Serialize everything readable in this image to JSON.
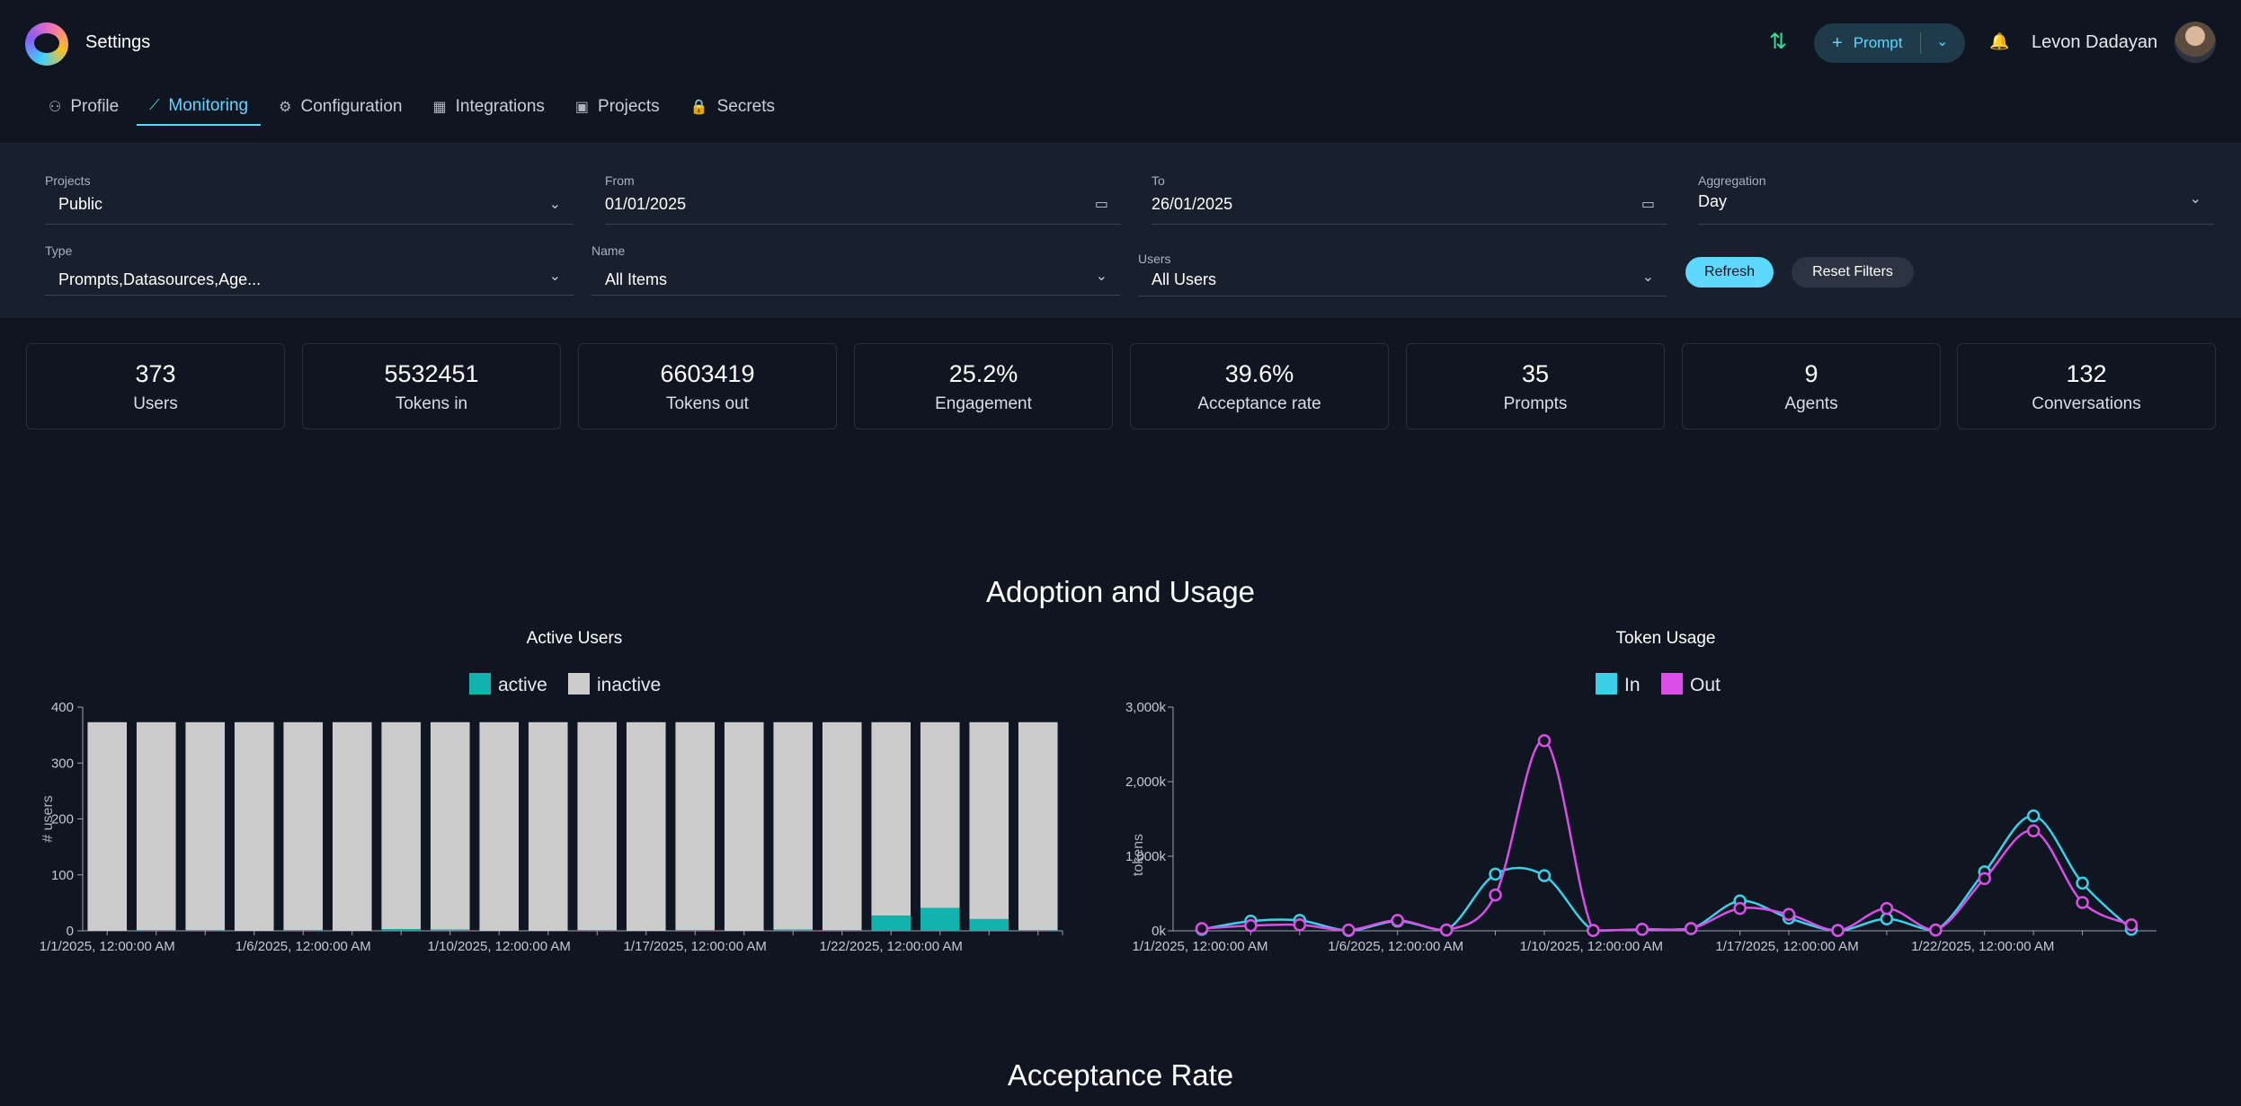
{
  "header": {
    "title": "Settings",
    "prompt_button": "Prompt",
    "username": "Levon Dadayan",
    "tabs": [
      {
        "label": "Profile",
        "icon": "user-icon"
      },
      {
        "label": "Monitoring",
        "icon": "chart-icon"
      },
      {
        "label": "Configuration",
        "icon": "gear-icon"
      },
      {
        "label": "Integrations",
        "icon": "grid-icon"
      },
      {
        "label": "Projects",
        "icon": "briefcase-icon"
      },
      {
        "label": "Secrets",
        "icon": "lock-icon"
      }
    ],
    "active_tab": "Monitoring"
  },
  "filters": {
    "projects": {
      "label": "Projects",
      "value": "Public"
    },
    "from": {
      "label": "From",
      "value": "01/01/2025"
    },
    "to": {
      "label": "To",
      "value": "26/01/2025"
    },
    "aggregation": {
      "label": "Aggregation",
      "value": "Day"
    },
    "type": {
      "label": "Type",
      "value": "Prompts,Datasources,Age..."
    },
    "name": {
      "label": "Name",
      "value": "All Items"
    },
    "users": {
      "label": "Users",
      "value": "All Users"
    },
    "refresh": "Refresh",
    "reset": "Reset Filters"
  },
  "stats": [
    {
      "value": "373",
      "label": "Users"
    },
    {
      "value": "5532451",
      "label": "Tokens in"
    },
    {
      "value": "6603419",
      "label": "Tokens out"
    },
    {
      "value": "25.2%",
      "label": "Engagement"
    },
    {
      "value": "39.6%",
      "label": "Acceptance rate"
    },
    {
      "value": "35",
      "label": "Prompts"
    },
    {
      "value": "9",
      "label": "Agents"
    },
    {
      "value": "132",
      "label": "Conversations"
    }
  ],
  "sections": {
    "adoption": "Adoption and Usage",
    "acceptance": "Acceptance Rate"
  },
  "colors": {
    "accent": "#5fd8ff",
    "active": "#11b3ad",
    "inactive": "#cccccc",
    "in": "#3ccfe8",
    "out": "#d94fe6"
  },
  "chart_data": [
    {
      "type": "bar",
      "title": "Active Users",
      "ylabel": "# users",
      "xlabel": "",
      "ylim": [
        0,
        400
      ],
      "yticks": [
        "0",
        "100",
        "200",
        "300",
        "400"
      ],
      "legend": [
        "active",
        "inactive"
      ],
      "legend_position": "top-center",
      "x_tick_labels": [
        "1/1/2025, 12:00:00 AM",
        "1/6/2025, 12:00:00 AM",
        "1/10/2025, 12:00:00 AM",
        "1/17/2025, 12:00:00 AM",
        "1/22/2025, 12:00:00 AM"
      ],
      "x_tick_index": [
        0,
        4,
        8,
        12,
        16
      ],
      "series": [
        {
          "name": "active",
          "values": [
            0,
            1,
            1,
            0,
            1,
            0,
            3,
            2,
            0,
            0,
            1,
            0,
            1,
            0,
            2,
            1,
            27,
            41,
            21,
            1
          ]
        },
        {
          "name": "inactive",
          "values": [
            373,
            372,
            372,
            373,
            372,
            373,
            370,
            371,
            373,
            373,
            372,
            373,
            372,
            373,
            371,
            372,
            346,
            332,
            352,
            372
          ]
        }
      ]
    },
    {
      "type": "line",
      "title": "Token Usage",
      "ylabel": "tokens",
      "xlabel": "",
      "ylim": [
        0,
        3000
      ],
      "yticks": [
        "0k",
        "1,000k",
        "2,000k",
        "3,000k"
      ],
      "legend": [
        "In",
        "Out"
      ],
      "legend_position": "top-center",
      "x_tick_labels": [
        "1/1/2025, 12:00:00 AM",
        "1/6/2025, 12:00:00 AM",
        "1/10/2025, 12:00:00 AM",
        "1/17/2025, 12:00:00 AM",
        "1/22/2025, 12:00:00 AM"
      ],
      "x_tick_index": [
        0,
        4,
        8,
        12,
        16
      ],
      "series": [
        {
          "name": "In",
          "values": [
            20,
            130,
            140,
            5,
            130,
            10,
            760,
            740,
            5,
            20,
            30,
            400,
            170,
            5,
            160,
            10,
            790,
            1540,
            640,
            20
          ]
        },
        {
          "name": "Out",
          "values": [
            30,
            70,
            80,
            10,
            140,
            10,
            480,
            2550,
            5,
            20,
            30,
            300,
            220,
            5,
            300,
            10,
            700,
            1340,
            380,
            80
          ]
        }
      ]
    }
  ]
}
